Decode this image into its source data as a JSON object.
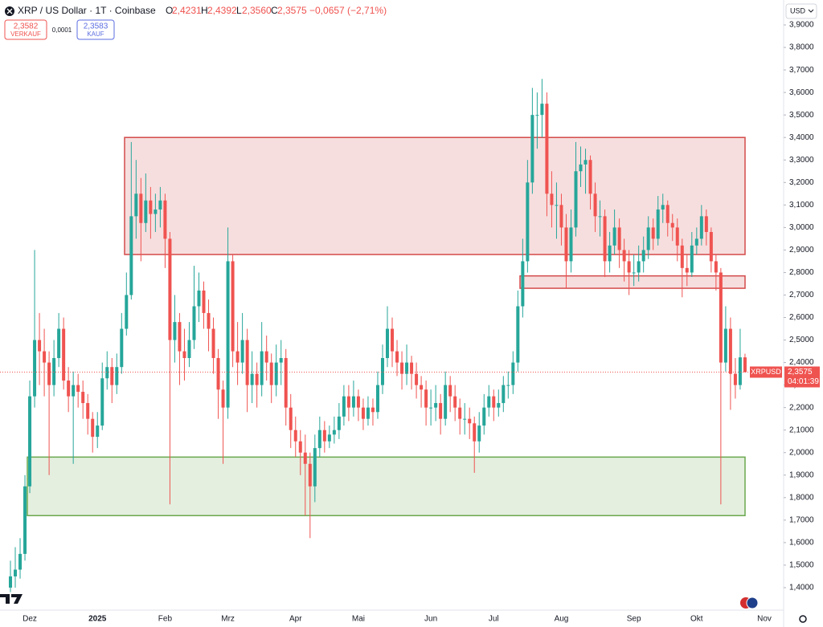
{
  "header": {
    "symbol": "XRP / US Dollar · 1T · Coinbase",
    "ohlc": [
      {
        "key": "O",
        "value": "2,4231"
      },
      {
        "key": "H",
        "value": "2,4392"
      },
      {
        "key": "L",
        "value": "2,3560"
      },
      {
        "key": "C",
        "value": "2,3575"
      }
    ],
    "change": "−0,0657 (−2,71%)",
    "sell": {
      "price": "2,3582",
      "label": "VERKAUF"
    },
    "spread": "0,0001",
    "buy": {
      "price": "2,3583",
      "label": "KAUF"
    },
    "currency": "USD",
    "price_tag": {
      "symbol": "XRPUSD",
      "price": "2,3575",
      "timer": "04:01:39"
    }
  },
  "chart_data": {
    "type": "candlestick",
    "categories": [
      null,
      null,
      null,
      null,
      "Dez",
      null,
      null,
      null,
      null,
      null,
      null,
      null,
      null,
      null,
      null,
      null,
      null,
      null,
      "2025",
      null,
      null,
      null,
      null,
      null,
      null,
      null,
      null,
      null,
      null,
      null,
      null,
      null,
      "Feb",
      null,
      null,
      null,
      null,
      null,
      null,
      null,
      null,
      null,
      null,
      null,
      null,
      "Mrz",
      null,
      null,
      null,
      null,
      null,
      null,
      null,
      null,
      null,
      null,
      null,
      null,
      null,
      "Apr",
      null,
      null,
      null,
      null,
      null,
      null,
      null,
      null,
      null,
      null,
      null,
      null,
      "Mai",
      null,
      null,
      null,
      null,
      null,
      null,
      null,
      null,
      null,
      null,
      null,
      null,
      null,
      null,
      "Jun",
      null,
      null,
      null,
      null,
      null,
      null,
      null,
      null,
      null,
      null,
      null,
      null,
      "Jul",
      null,
      null,
      null,
      null,
      null,
      null,
      null,
      null,
      null,
      null,
      null,
      null,
      null,
      "Aug",
      null,
      null,
      null,
      null,
      null,
      null,
      null,
      null,
      null,
      null,
      null,
      null,
      null,
      null,
      "Sep",
      null,
      null,
      null,
      null,
      null,
      null,
      null,
      null,
      null,
      null,
      null,
      null,
      "Okt",
      null,
      null,
      null,
      null,
      null,
      null,
      null,
      null,
      null,
      null,
      null,
      null,
      null,
      "Nov"
    ],
    "open": [
      1.4,
      1.45,
      1.48,
      1.55,
      1.85,
      2.25,
      2.5,
      2.45,
      2.4,
      2.3,
      2.42,
      2.55,
      2.32,
      2.25,
      2.3,
      2.27,
      2.22,
      2.15,
      2.07,
      2.12,
      2.33,
      2.38,
      2.3,
      2.38,
      2.55,
      2.7,
      3.05,
      3.15,
      3.02,
      3.12,
      3.06,
      3.08,
      3.12,
      2.95,
      2.5,
      2.58,
      2.45,
      2.42,
      2.5,
      2.65,
      2.72,
      2.62,
      2.55,
      2.42,
      2.28,
      2.2,
      2.85,
      2.45,
      2.4,
      2.5,
      2.3,
      2.35,
      2.3,
      2.45,
      2.4,
      2.3,
      2.4,
      2.42,
      2.2,
      2.1,
      2.05,
      2.0,
      1.95,
      1.85,
      2.02,
      2.1,
      2.05,
      2.08,
      2.1,
      2.16,
      2.25,
      2.2,
      2.25,
      2.2,
      2.15,
      2.2,
      2.18,
      2.3,
      2.42,
      2.55,
      2.45,
      2.4,
      2.35,
      2.4,
      2.35,
      2.3,
      2.28,
      2.2,
      2.2,
      2.22,
      2.15,
      2.3,
      2.25,
      2.2,
      2.15,
      2.15,
      2.13,
      2.05,
      2.12,
      2.2,
      2.25,
      2.2,
      2.22,
      2.3,
      2.3,
      2.4,
      2.65,
      2.85,
      3.2,
      3.5,
      3.5,
      3.55,
      3.15,
      3.1,
      3.1,
      3.0,
      2.85,
      3.0,
      3.25,
      3.28,
      3.3,
      3.15,
      3.05,
      3.05,
      2.85,
      2.92,
      3.0,
      2.9,
      2.85,
      2.8,
      2.8,
      2.85,
      2.9,
      3.0,
      2.95,
      3.08,
      3.1,
      3.02,
      3.0,
      2.92,
      2.82,
      2.8,
      2.92,
      2.95,
      3.05,
      2.98,
      2.85,
      2.8,
      2.4,
      2.55,
      2.35,
      2.3,
      2.4231,
      null,
      null,
      null,
      null
    ],
    "high": [
      1.52,
      1.58,
      1.62,
      1.9,
      2.32,
      2.9,
      2.62,
      2.55,
      2.45,
      2.5,
      2.62,
      2.6,
      2.38,
      2.36,
      2.35,
      2.32,
      2.26,
      2.18,
      2.18,
      2.4,
      2.45,
      2.42,
      2.44,
      2.62,
      2.8,
      3.38,
      3.3,
      3.22,
      3.24,
      3.18,
      3.15,
      3.18,
      3.15,
      2.98,
      2.7,
      2.62,
      2.55,
      2.58,
      2.83,
      2.8,
      2.76,
      2.68,
      2.6,
      2.46,
      2.32,
      3.0,
      2.88,
      2.58,
      2.62,
      2.55,
      2.45,
      2.4,
      2.58,
      2.52,
      2.44,
      2.48,
      2.5,
      2.46,
      2.26,
      2.16,
      2.1,
      2.08,
      2.0,
      2.08,
      2.16,
      2.14,
      2.12,
      2.16,
      2.22,
      2.3,
      2.3,
      2.32,
      2.28,
      2.24,
      2.25,
      2.24,
      2.36,
      2.48,
      2.65,
      2.6,
      2.5,
      2.45,
      2.48,
      2.43,
      2.4,
      2.34,
      2.32,
      2.28,
      2.3,
      2.26,
      2.36,
      2.34,
      2.3,
      2.24,
      2.22,
      2.2,
      2.16,
      2.18,
      2.26,
      2.3,
      2.28,
      2.28,
      2.34,
      2.36,
      2.45,
      2.72,
      2.95,
      3.3,
      3.62,
      3.6,
      3.66,
      3.6,
      3.25,
      3.2,
      3.15,
      3.06,
      3.08,
      3.38,
      3.36,
      3.35,
      3.32,
      3.2,
      3.12,
      3.08,
      2.98,
      3.08,
      3.04,
      2.95,
      2.9,
      2.88,
      2.92,
      2.96,
      3.05,
      3.04,
      3.14,
      3.15,
      3.12,
      3.06,
      3.04,
      2.95,
      2.88,
      2.98,
      3.0,
      3.1,
      3.08,
      3.0,
      2.88,
      2.82,
      2.65,
      2.6,
      2.42,
      2.55,
      2.4392,
      null,
      null,
      null,
      null
    ],
    "low": [
      1.38,
      1.4,
      1.44,
      1.52,
      1.82,
      2.2,
      2.3,
      2.25,
      1.9,
      2.25,
      2.38,
      2.28,
      2.18,
      1.95,
      2.2,
      2.15,
      2.08,
      2.0,
      2.02,
      2.1,
      2.28,
      2.22,
      2.26,
      2.35,
      2.52,
      2.68,
      2.95,
      2.85,
      2.98,
      2.95,
      2.98,
      3.0,
      2.82,
      1.77,
      2.4,
      2.3,
      2.32,
      2.38,
      2.46,
      2.58,
      2.55,
      2.45,
      2.35,
      2.15,
      1.95,
      2.15,
      2.38,
      2.3,
      2.35,
      2.18,
      2.22,
      2.2,
      2.25,
      2.32,
      2.22,
      2.25,
      2.3,
      2.12,
      2.02,
      1.98,
      1.9,
      1.72,
      1.62,
      1.78,
      1.98,
      2.0,
      2.02,
      2.04,
      2.06,
      2.12,
      2.14,
      2.16,
      2.14,
      2.1,
      2.12,
      2.12,
      2.15,
      2.26,
      2.38,
      2.38,
      2.34,
      2.28,
      2.3,
      2.28,
      2.24,
      2.2,
      2.12,
      2.12,
      2.14,
      2.08,
      2.12,
      2.18,
      2.14,
      2.08,
      2.08,
      2.06,
      1.91,
      2.0,
      2.08,
      2.16,
      2.14,
      2.16,
      2.18,
      2.24,
      2.26,
      2.36,
      2.6,
      2.8,
      3.15,
      3.35,
      3.4,
      3.05,
      3.0,
      2.95,
      2.92,
      2.73,
      2.8,
      2.96,
      3.18,
      3.15,
      3.08,
      2.98,
      2.96,
      2.78,
      2.8,
      2.88,
      2.82,
      2.76,
      2.7,
      2.74,
      2.76,
      2.8,
      2.86,
      2.9,
      2.92,
      3.02,
      2.96,
      2.94,
      2.85,
      2.69,
      2.74,
      2.78,
      2.88,
      2.92,
      2.92,
      2.8,
      2.72,
      1.77,
      2.36,
      2.19,
      2.24,
      2.28,
      2.356,
      null,
      null,
      null,
      null
    ],
    "close": [
      1.45,
      1.48,
      1.55,
      1.85,
      2.25,
      2.5,
      2.45,
      2.4,
      2.3,
      2.42,
      2.55,
      2.32,
      2.25,
      2.3,
      2.27,
      2.22,
      2.15,
      2.07,
      2.12,
      2.33,
      2.38,
      2.3,
      2.38,
      2.55,
      2.7,
      3.05,
      3.15,
      3.02,
      3.12,
      3.06,
      3.08,
      3.12,
      2.95,
      2.5,
      2.58,
      2.45,
      2.42,
      2.5,
      2.65,
      2.72,
      2.62,
      2.55,
      2.42,
      2.28,
      2.2,
      2.85,
      2.45,
      2.4,
      2.5,
      2.3,
      2.35,
      2.3,
      2.45,
      2.4,
      2.3,
      2.4,
      2.42,
      2.2,
      2.1,
      2.05,
      2.0,
      1.95,
      1.85,
      2.02,
      2.1,
      2.05,
      2.08,
      2.1,
      2.16,
      2.25,
      2.2,
      2.25,
      2.2,
      2.15,
      2.2,
      2.18,
      2.3,
      2.42,
      2.55,
      2.45,
      2.4,
      2.35,
      2.4,
      2.35,
      2.3,
      2.28,
      2.2,
      2.2,
      2.22,
      2.15,
      2.3,
      2.25,
      2.2,
      2.15,
      2.15,
      2.13,
      2.05,
      2.12,
      2.2,
      2.25,
      2.2,
      2.22,
      2.3,
      2.3,
      2.4,
      2.65,
      2.85,
      3.2,
      3.5,
      3.5,
      3.55,
      3.15,
      3.1,
      3.1,
      3.0,
      2.85,
      3.0,
      3.25,
      3.28,
      3.3,
      3.15,
      3.05,
      3.05,
      2.85,
      2.92,
      3.0,
      2.9,
      2.85,
      2.8,
      2.8,
      2.85,
      2.9,
      3.0,
      2.95,
      3.08,
      3.1,
      3.02,
      3.0,
      2.92,
      2.82,
      2.8,
      2.92,
      2.95,
      3.05,
      2.98,
      2.85,
      2.8,
      2.4,
      2.55,
      2.35,
      2.3,
      2.4231,
      2.3575,
      null,
      null,
      null,
      null
    ],
    "up_color": "#26a69a",
    "down_color": "#ef5350",
    "ylim": [
      1.3,
      4.0
    ],
    "yticks": [
      {
        "value": 1.4,
        "label": "1,4000"
      },
      {
        "value": 1.5,
        "label": "1,5000"
      },
      {
        "value": 1.6,
        "label": "1,6000"
      },
      {
        "value": 1.7,
        "label": "1,7000"
      },
      {
        "value": 1.8,
        "label": "1,8000"
      },
      {
        "value": 1.9,
        "label": "1,9000"
      },
      {
        "value": 2.0,
        "label": "2,0000"
      },
      {
        "value": 2.1,
        "label": "2,1000"
      },
      {
        "value": 2.2,
        "label": "2,2000"
      },
      {
        "value": 2.3,
        "label": "2,3000"
      },
      {
        "value": 2.4,
        "label": "2,4000"
      },
      {
        "value": 2.5,
        "label": "2,5000"
      },
      {
        "value": 2.6,
        "label": "2,6000"
      },
      {
        "value": 2.7,
        "label": "2,7000"
      },
      {
        "value": 2.8,
        "label": "2,8000"
      },
      {
        "value": 2.9,
        "label": "2,9000"
      },
      {
        "value": 3.0,
        "label": "3,0000"
      },
      {
        "value": 3.1,
        "label": "3,1000"
      },
      {
        "value": 3.2,
        "label": "3,2000"
      },
      {
        "value": 3.3,
        "label": "3,3000"
      },
      {
        "value": 3.4,
        "label": "3,4000"
      },
      {
        "value": 3.5,
        "label": "3,5000"
      },
      {
        "value": 3.6,
        "label": "3,6000"
      },
      {
        "value": 3.7,
        "label": "3,7000"
      },
      {
        "value": 3.8,
        "label": "3,8000"
      },
      {
        "value": 3.9,
        "label": "3,9000"
      }
    ],
    "zones": [
      {
        "low": 2.88,
        "high": 3.4,
        "color": "#d44a4a"
      },
      {
        "low": 2.73,
        "high": 2.785,
        "color": "#d44a4a"
      },
      {
        "low": 1.72,
        "high": 1.98,
        "color": "#6aa84f"
      }
    ],
    "last_price_line": true
  }
}
